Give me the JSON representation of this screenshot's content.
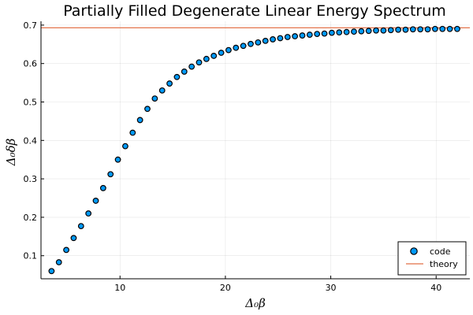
{
  "chart_data": {
    "type": "scatter",
    "title": "Partially Filled Degenerate Linear Energy Spectrum",
    "xlabel": "Δ₀β",
    "ylabel": "Δ₀δβ",
    "xlim": [
      2.5,
      43.2
    ],
    "ylim": [
      0.04,
      0.71
    ],
    "xticks": [
      10,
      20,
      30,
      40
    ],
    "yticks": [
      0.1,
      0.2,
      0.3,
      0.4,
      0.5,
      0.6,
      0.7
    ],
    "xtick_labels": [
      "10",
      "20",
      "30",
      "40"
    ],
    "ytick_labels": [
      "0.1",
      "0.2",
      "0.3",
      "0.4",
      "0.5",
      "0.6",
      "0.7"
    ],
    "grid": true,
    "legend_position": "bottom-right",
    "series": [
      {
        "name": "code",
        "kind": "scatter",
        "color": "#009AFA",
        "x": [
          3.5,
          4.2,
          4.9,
          5.6,
          6.3,
          7.0,
          7.7,
          8.4,
          9.1,
          9.8,
          10.5,
          11.2,
          11.9,
          12.6,
          13.3,
          14.0,
          14.7,
          15.4,
          16.1,
          16.8,
          17.5,
          18.2,
          18.9,
          19.6,
          20.3,
          21.0,
          21.7,
          22.4,
          23.1,
          23.8,
          24.5,
          25.2,
          25.9,
          26.6,
          27.3,
          28.0,
          28.7,
          29.4,
          30.1,
          30.8,
          31.5,
          32.2,
          32.9,
          33.6,
          34.3,
          35.0,
          35.7,
          36.4,
          37.1,
          37.8,
          38.5,
          39.2,
          39.9,
          40.6,
          41.3,
          42.0
        ],
        "y": [
          0.06,
          0.083,
          0.115,
          0.146,
          0.177,
          0.21,
          0.243,
          0.276,
          0.312,
          0.35,
          0.385,
          0.42,
          0.453,
          0.482,
          0.509,
          0.53,
          0.548,
          0.565,
          0.579,
          0.592,
          0.603,
          0.612,
          0.62,
          0.628,
          0.635,
          0.641,
          0.646,
          0.651,
          0.655,
          0.659,
          0.663,
          0.666,
          0.669,
          0.671,
          0.673,
          0.675,
          0.677,
          0.678,
          0.68,
          0.681,
          0.682,
          0.683,
          0.684,
          0.685,
          0.686,
          0.686,
          0.687,
          0.688,
          0.688,
          0.689,
          0.689,
          0.689,
          0.69,
          0.69,
          0.69,
          0.69
        ]
      },
      {
        "name": "theory",
        "kind": "hline",
        "color": "#E26F46",
        "y": 0.6931
      }
    ]
  }
}
